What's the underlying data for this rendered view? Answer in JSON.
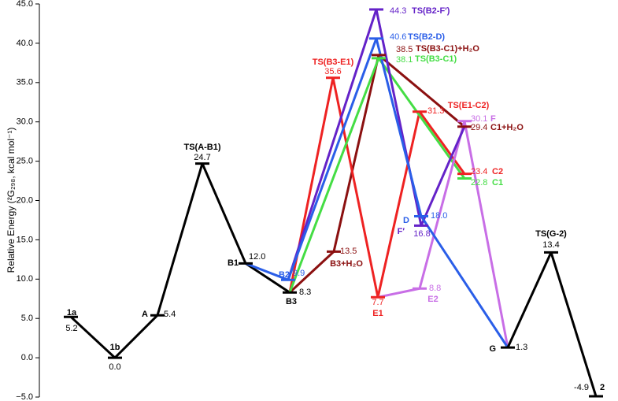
{
  "chart_data": {
    "type": "energy-profile",
    "y_label": "Relative Energy (²G₂₉₈, kcal mol⁻¹)",
    "ylim": [
      -5,
      45
    ],
    "yticks": [
      {
        "value": -5,
        "label": "−5.0"
      },
      {
        "value": 0,
        "label": "0.0"
      },
      {
        "value": 5,
        "label": "5.0"
      },
      {
        "value": 10,
        "label": "10.0"
      },
      {
        "value": 15,
        "label": "15.0"
      },
      {
        "value": 20,
        "label": "20.0"
      },
      {
        "value": 25,
        "label": "25.0"
      },
      {
        "value": 30,
        "label": "30.0"
      },
      {
        "value": 35,
        "label": "35.0"
      },
      {
        "value": 40,
        "label": "40.0"
      },
      {
        "value": 45,
        "label": "45.0"
      }
    ],
    "categories": [
      "1a",
      "1b",
      "A",
      "TS(A-B1)",
      "B1",
      "B2",
      "B3",
      "B3+H₂O",
      "TS(B3-E1)",
      "TS(B2-F′)",
      "TS(B2-D)",
      "TS(B3-C1)+H₂O",
      "TS(B3-C1)",
      "E1",
      "TS(E1-C2)",
      "E2",
      "D",
      "F′",
      "F",
      "C1+H₂O",
      "C2",
      "C1",
      "G",
      "TS(G-2)",
      "2"
    ],
    "values": [
      5.2,
      0,
      5.4,
      24.7,
      12,
      9.9,
      8.3,
      13.5,
      35.6,
      44.3,
      40.6,
      38.5,
      38.1,
      7.7,
      31.3,
      8.8,
      18,
      16.8,
      30.1,
      29.4,
      23.4,
      22.8,
      1.3,
      13.4,
      -4.9
    ],
    "value_labels": [
      "5.2",
      "0.0",
      "5.4",
      "24.7",
      "12.0",
      "9.9",
      "8.3",
      "13.5",
      "35.6",
      "44.3",
      "40.6",
      "38.5",
      "38.1",
      "7.7",
      "31.3",
      "8.8",
      "18.0",
      "16.8",
      "30.1",
      "29.4",
      "23.4",
      "22.8",
      "1.3",
      "13.4",
      "-4.9"
    ],
    "colors": [
      "#000000",
      "#000000",
      "#000000",
      "#000000",
      "#000000",
      "#2a5ee8",
      "#000000",
      "#8b1010",
      "#ee2222",
      "#6422c8",
      "#2a5ee8",
      "#8b1010",
      "#44dd44",
      "#ee2222",
      "#ee2222",
      "#c86ee6",
      "#2a5ee8",
      "#6422c8",
      "#c86ee6",
      "#8b1010",
      "#ee2222",
      "#44dd44",
      "#000000",
      "#000000",
      "#000000"
    ],
    "pathways": [
      {
        "color": "#000000",
        "states": [
          "1a",
          "1b",
          "A",
          "TS(A-B1)",
          "B1",
          "B3"
        ]
      },
      {
        "color": "#8b1010",
        "states": [
          "B3",
          "B3+H₂O",
          "TS(B3-C1)+H₂O",
          "C1+H₂O"
        ]
      },
      {
        "color": "#ee2222",
        "states": [
          "B3",
          "TS(B3-E1)",
          "E1",
          "TS(E1-C2)",
          "C2"
        ]
      },
      {
        "color": "#44dd44",
        "states": [
          "B3",
          "TS(B3-C1)",
          "C1"
        ]
      },
      {
        "color": "#c86ee6",
        "states": [
          "E1",
          "E2",
          "F",
          "G"
        ]
      },
      {
        "color": "#6422c8",
        "states": [
          "B2",
          "TS(B2-F′)",
          "F′",
          "C1+H₂O"
        ]
      },
      {
        "color": "#2a5ee8",
        "states": [
          "B1",
          "B2",
          "TS(B2-D)",
          "D",
          "G"
        ]
      },
      {
        "color": "#000000",
        "states": [
          "G",
          "TS(G-2)",
          "2"
        ]
      }
    ]
  }
}
